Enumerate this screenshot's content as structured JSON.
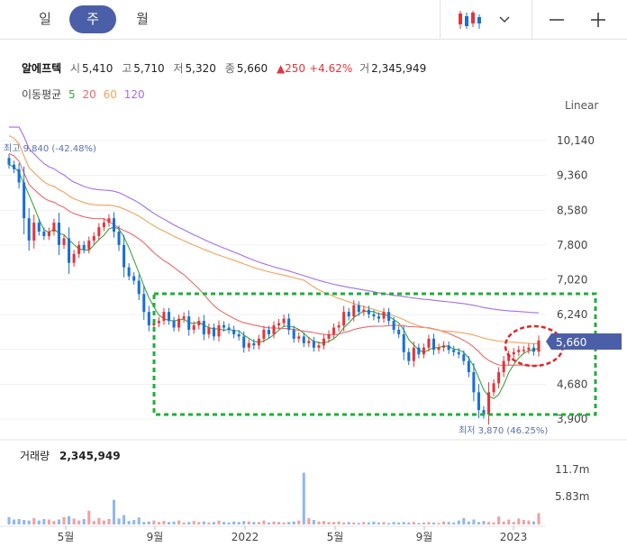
{
  "period_tabs": [
    {
      "label": "일",
      "active": false
    },
    {
      "label": "주",
      "active": true
    },
    {
      "label": "월",
      "active": false
    }
  ],
  "stock": {
    "name": "알에프텍",
    "open_label": "시",
    "open": "5,410",
    "high_label": "고",
    "high": "5,710",
    "low_label": "저",
    "low": "5,320",
    "close_label": "종",
    "close": "5,660",
    "change": "▲250",
    "change_pct": "+4.62%",
    "volume_label": "거",
    "volume": "2,345,949"
  },
  "moving_average": {
    "label": "이동평균",
    "periods": [
      {
        "label": "5",
        "color": "#3aa53a"
      },
      {
        "label": "20",
        "color": "#e8686b"
      },
      {
        "label": "60",
        "color": "#f0a25a"
      },
      {
        "label": "120",
        "color": "#a46ee8"
      }
    ]
  },
  "scale_mode": "Linear",
  "volume_panel": {
    "label": "거래량",
    "value": "2,345,949",
    "ticks": [
      "11.7m",
      "5.83m"
    ]
  },
  "colors": {
    "up": "#e0363c",
    "down": "#1a6fd6",
    "accent": "#4a5fa8",
    "box": "#1fae3a",
    "circle": "#e0262a"
  },
  "chart_data": {
    "type": "candlestick",
    "title": "",
    "price_ticks": [
      10140,
      9360,
      8580,
      7800,
      7020,
      6240,
      5460,
      4680,
      3900
    ],
    "price_tick_labels": [
      "10,140",
      "9,360",
      "8,580",
      "7,800",
      "7,020",
      "6,240",
      "",
      "4,680",
      "3,900"
    ],
    "ylim": [
      3900,
      10140
    ],
    "x_tick_labels": [
      "5월",
      "9월",
      "2022",
      "5월",
      "9월",
      "2023"
    ],
    "current_price_label": "5,660",
    "max_annotation": "최고 9,840 (-42.48%)",
    "min_annotation": "최저 3,870 (46.25%)",
    "closes": [
      9600,
      9500,
      9200,
      8400,
      7900,
      8300,
      8100,
      8000,
      8100,
      8300,
      7800,
      7950,
      7400,
      7600,
      7800,
      7700,
      7900,
      8000,
      8200,
      8300,
      8400,
      8100,
      7800,
      7300,
      7100,
      7000,
      6700,
      6300,
      6000,
      6050,
      6100,
      6300,
      6100,
      5950,
      6150,
      6200,
      5900,
      6000,
      6100,
      5800,
      5950,
      5750,
      6000,
      5950,
      5900,
      5800,
      5750,
      5500,
      5600,
      5550,
      5700,
      5900,
      5800,
      6000,
      6050,
      6150,
      5900,
      5700,
      5750,
      5600,
      5650,
      5500,
      5550,
      5700,
      5800,
      5950,
      6000,
      6300,
      6200,
      6450,
      6300,
      6350,
      6250,
      6200,
      6150,
      6300,
      6100,
      5900,
      5800,
      5400,
      5200,
      5500,
      5350,
      5500,
      5700,
      5450,
      5500,
      5550,
      5450,
      5400,
      5350,
      5200,
      4950,
      4500,
      4100,
      4000,
      4500,
      4700,
      4950,
      5200,
      5350,
      5400,
      5450,
      5450,
      5500,
      5410,
      5660
    ],
    "volumes": [
      1.5,
      1.0,
      1.1,
      0.9,
      0.8,
      1.3,
      0.8,
      1.1,
      1.0,
      0.7,
      1.0,
      1.5,
      1.7,
      1.2,
      0.8,
      1.1,
      2.8,
      0.7,
      1.3,
      0.8,
      1.1,
      5.0,
      1.2,
      1.9,
      0.7,
      0.9,
      1.4,
      0.5,
      0.6,
      0.8,
      0.5,
      0.7,
      0.5,
      0.6,
      0.8,
      0.4,
      0.5,
      0.7,
      0.5,
      0.6,
      0.4,
      0.5,
      0.8,
      0.5,
      0.4,
      0.6,
      0.5,
      0.7,
      0.6,
      0.5,
      0.5,
      0.8,
      0.4,
      0.6,
      0.5,
      0.4,
      0.5,
      0.6,
      0.8,
      10.5,
      1.3,
      0.9,
      0.6,
      0.7,
      0.5,
      0.5,
      0.6,
      0.4,
      0.5,
      0.4,
      0.3,
      0.5,
      0.4,
      0.6,
      0.4,
      0.5,
      0.3,
      0.5,
      0.4,
      0.5,
      0.4,
      0.5,
      0.3,
      0.4,
      0.5,
      0.4,
      0.3,
      0.6,
      0.5,
      0.4,
      0.8,
      1.3,
      0.6,
      1.0,
      0.5,
      0.7,
      0.5,
      0.4,
      1.6,
      0.6,
      1.0,
      0.5,
      1.2,
      0.9,
      0.8,
      0.6,
      2.3
    ],
    "volume_ticks_m": [
      11.7,
      5.83
    ],
    "ma_periods": [
      5,
      20,
      60,
      120
    ]
  }
}
